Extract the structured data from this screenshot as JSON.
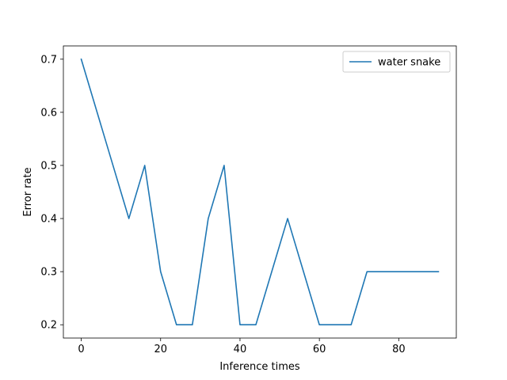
{
  "chart_data": {
    "type": "line",
    "title": "",
    "xlabel": "Inference times",
    "ylabel": "Error rate",
    "xlim": [
      -4.5,
      94.5
    ],
    "ylim": [
      0.175,
      0.725
    ],
    "x_ticks": [
      0,
      20,
      40,
      60,
      80
    ],
    "x_tick_labels": [
      "0",
      "20",
      "40",
      "60",
      "80"
    ],
    "y_ticks": [
      0.2,
      0.3,
      0.4,
      0.5,
      0.6,
      0.7
    ],
    "y_tick_labels": [
      "0.2",
      "0.3",
      "0.4",
      "0.5",
      "0.6",
      "0.7"
    ],
    "grid": false,
    "legend_position": "top-right",
    "series": [
      {
        "name": "water snake",
        "color": "#1f77b4",
        "x": [
          0,
          4,
          8,
          12,
          16,
          20,
          24,
          28,
          32,
          36,
          40,
          44,
          48,
          52,
          56,
          60,
          64,
          68,
          72,
          76,
          80,
          84,
          88,
          90
        ],
        "y": [
          0.7,
          0.6,
          0.5,
          0.4,
          0.5,
          0.3,
          0.2,
          0.2,
          0.4,
          0.5,
          0.2,
          0.2,
          0.3,
          0.4,
          0.3,
          0.2,
          0.2,
          0.2,
          0.3,
          0.3,
          0.3,
          0.3,
          0.3,
          0.3
        ]
      }
    ]
  }
}
